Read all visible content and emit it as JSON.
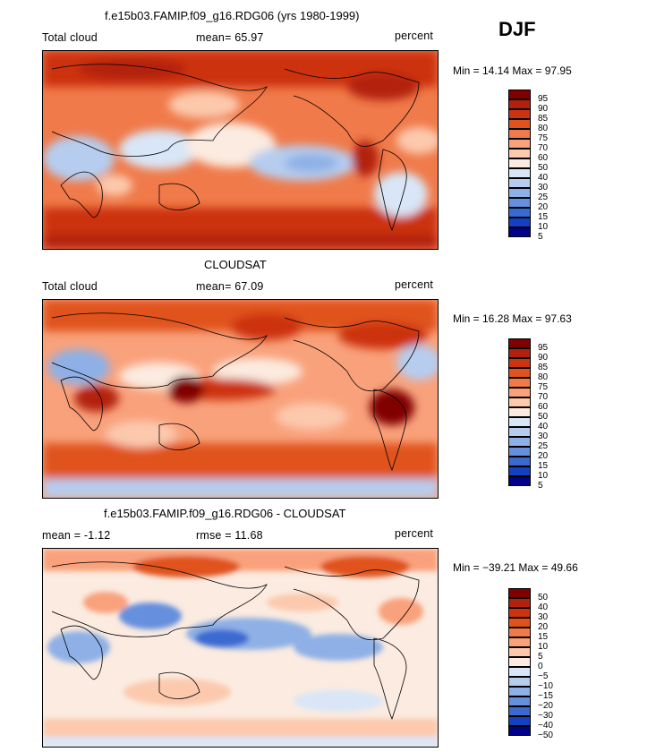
{
  "season": "DJF",
  "panels": [
    {
      "title": "f.e15b03.FAMIP.f09_g16.RDG06 (yrs 1980-1999)",
      "left_label": "Total cloud",
      "center_label": "mean=  65.97",
      "right_label": "percent",
      "minmax": "Min =  14.14 Max =  97.95",
      "levels": [
        "95",
        "90",
        "85",
        "80",
        "75",
        "70",
        "60",
        "50",
        "40",
        "30",
        "25",
        "20",
        "15",
        "10",
        "5"
      ]
    },
    {
      "title": "CLOUDSAT",
      "left_label": "Total cloud",
      "center_label": "mean=  67.09",
      "right_label": "percent",
      "minmax": "Min =  16.28 Max =  97.63",
      "levels": [
        "95",
        "90",
        "85",
        "80",
        "75",
        "70",
        "60",
        "50",
        "40",
        "30",
        "25",
        "20",
        "15",
        "10",
        "5"
      ]
    },
    {
      "title": "f.e15b03.FAMIP.f09_g16.RDG06 - CLOUDSAT",
      "left_label": "mean =  -1.12",
      "center_label": "rmse =  11.68",
      "right_label": "percent",
      "minmax": "Min = −39.21 Max =  49.66",
      "levels": [
        "50",
        "40",
        "30",
        "20",
        "15",
        "10",
        "5",
        "0",
        "−5",
        "−10",
        "−15",
        "−20",
        "−30",
        "−40",
        "−50"
      ]
    }
  ],
  "colors": {
    "scale": [
      "#800000",
      "#b3200e",
      "#cc3311",
      "#e0531f",
      "#f07a4a",
      "#f9a17b",
      "#fcc9ad",
      "#fbebe0",
      "#d8e6f7",
      "#b6cdef",
      "#8eb0e6",
      "#6690dd",
      "#3a6ad1",
      "#1440c3",
      "#00008c"
    ]
  }
}
